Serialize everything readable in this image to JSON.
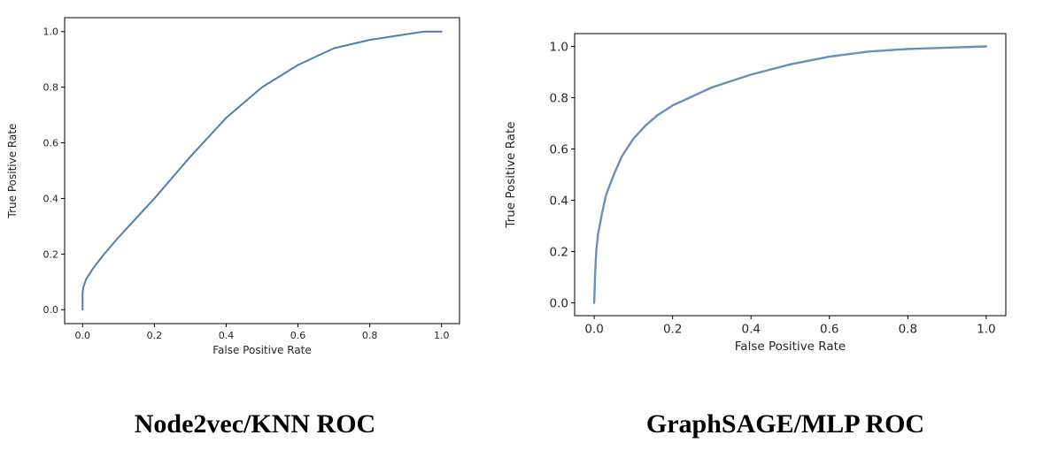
{
  "chart_data": [
    {
      "type": "line",
      "caption": "Node2vec/KNN ROC",
      "xlabel": "False Positive Rate",
      "ylabel": "True Positive Rate",
      "xlim": [
        -0.05,
        1.05
      ],
      "ylim": [
        -0.05,
        1.05
      ],
      "xticks": [
        "0.0",
        "0.2",
        "0.4",
        "0.6",
        "0.8",
        "1.0"
      ],
      "yticks": [
        "0.0",
        "0.2",
        "0.4",
        "0.6",
        "0.8",
        "1.0"
      ],
      "grid": false,
      "series": [
        {
          "color": "#4c7fb2",
          "x": [
            0.0,
            0.0,
            0.002,
            0.01,
            0.03,
            0.06,
            0.1,
            0.15,
            0.2,
            0.3,
            0.4,
            0.5,
            0.6,
            0.7,
            0.8,
            0.9,
            0.95,
            1.0
          ],
          "y": [
            0.0,
            0.06,
            0.08,
            0.11,
            0.15,
            0.2,
            0.26,
            0.33,
            0.4,
            0.55,
            0.69,
            0.8,
            0.88,
            0.94,
            0.97,
            0.99,
            1.0,
            1.0
          ]
        }
      ]
    },
    {
      "type": "line",
      "caption": "GraphSAGE/MLP ROC",
      "xlabel": "False Positive Rate",
      "ylabel": "True Positive Rate",
      "xlim": [
        -0.05,
        1.05
      ],
      "ylim": [
        -0.05,
        1.05
      ],
      "xticks": [
        "0.0",
        "0.2",
        "0.4",
        "0.6",
        "0.8",
        "1.0"
      ],
      "yticks": [
        "0.0",
        "0.2",
        "0.4",
        "0.6",
        "0.8",
        "1.0"
      ],
      "grid": false,
      "series": [
        {
          "color": "#6690bd",
          "x": [
            0.0,
            0.002,
            0.005,
            0.01,
            0.02,
            0.03,
            0.05,
            0.07,
            0.1,
            0.13,
            0.16,
            0.2,
            0.3,
            0.4,
            0.5,
            0.6,
            0.7,
            0.8,
            0.9,
            1.0
          ],
          "y": [
            0.0,
            0.1,
            0.2,
            0.27,
            0.35,
            0.42,
            0.5,
            0.57,
            0.64,
            0.69,
            0.73,
            0.77,
            0.84,
            0.89,
            0.93,
            0.96,
            0.98,
            0.99,
            0.995,
            1.0
          ]
        }
      ]
    }
  ]
}
